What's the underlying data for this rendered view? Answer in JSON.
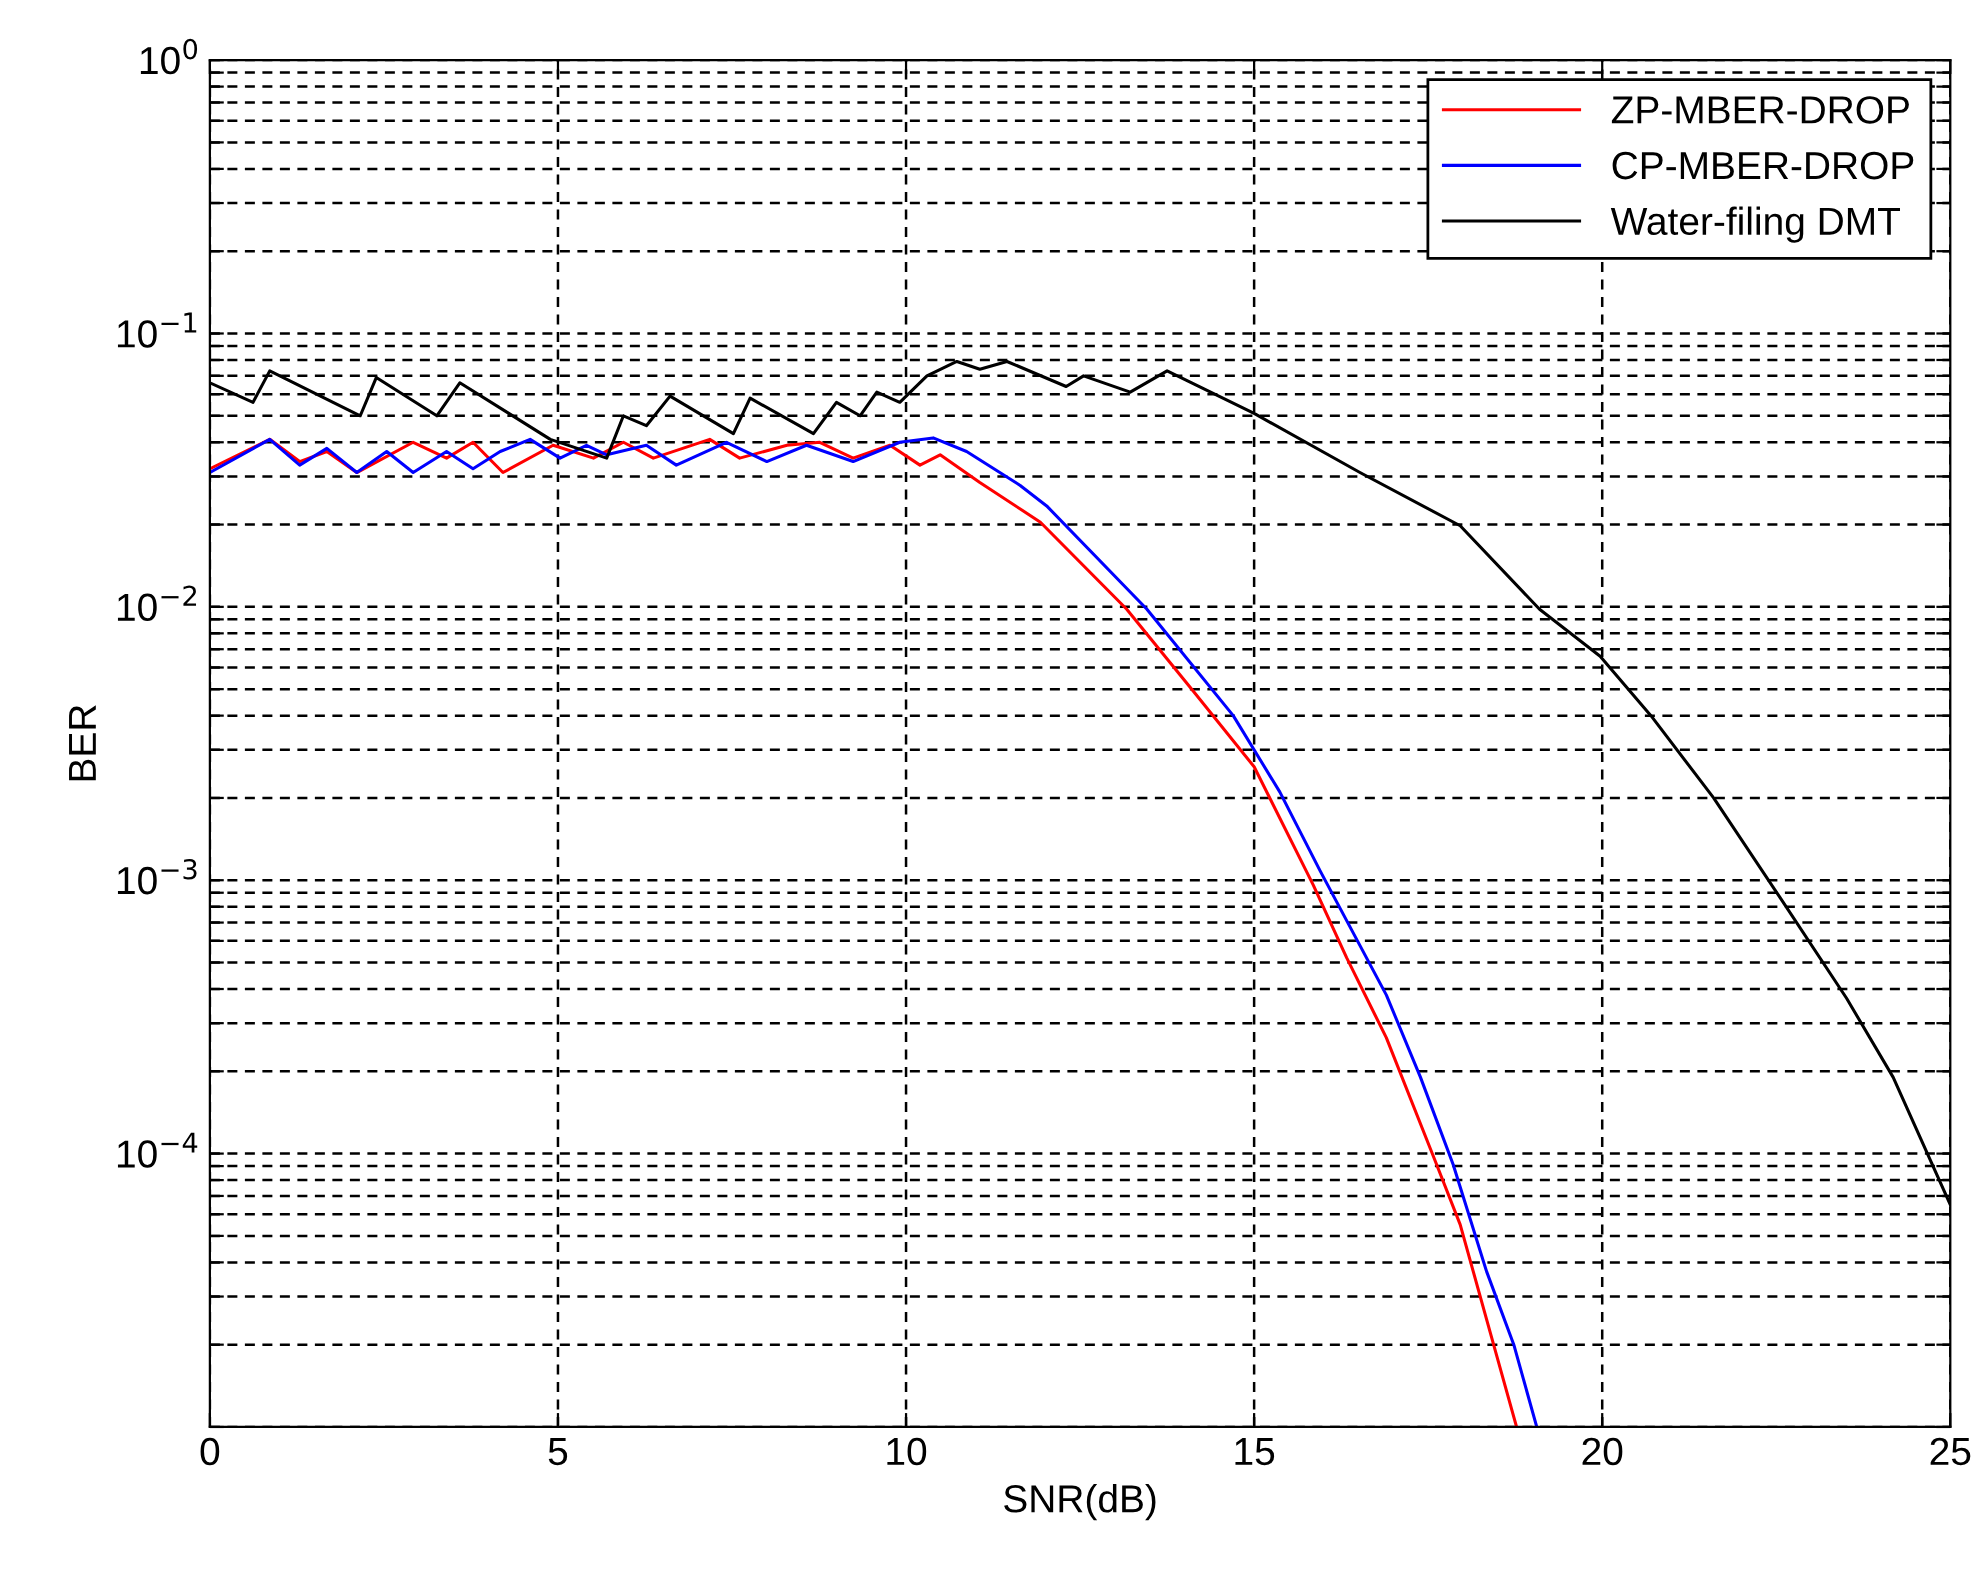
{
  "chart_data": {
    "type": "line",
    "xlabel": "SNR(dB)",
    "ylabel": "BER",
    "log": "y",
    "xlim": [
      0,
      25
    ],
    "xticks": [
      0,
      5,
      10,
      15,
      20,
      25
    ],
    "ylim": [
      1e-05,
      1
    ],
    "yticks": [
      {
        "value": 1e-05,
        "label": null
      },
      {
        "value": 2e-05,
        "label": null
      },
      {
        "value": 3e-05,
        "label": null
      },
      {
        "value": 4e-05,
        "label": null
      },
      {
        "value": 5e-05,
        "label": null
      },
      {
        "value": 6e-05,
        "label": null
      },
      {
        "value": 7e-05,
        "label": null
      },
      {
        "value": 8e-05,
        "label": null
      },
      {
        "value": 9e-05,
        "label": null
      },
      {
        "value": 0.0001,
        "label": "10$^{−4}$"
      },
      {
        "value": 0.0002,
        "label": null
      },
      {
        "value": 0.0003,
        "label": null
      },
      {
        "value": 0.0004,
        "label": null
      },
      {
        "value": 0.0005,
        "label": null
      },
      {
        "value": 0.0006,
        "label": null
      },
      {
        "value": 0.0007,
        "label": null
      },
      {
        "value": 0.0008,
        "label": null
      },
      {
        "value": 0.0009,
        "label": null
      },
      {
        "value": 0.001,
        "label": "10$^{−3}$"
      },
      {
        "value": 0.002,
        "label": null
      },
      {
        "value": 0.003,
        "label": null
      },
      {
        "value": 0.004,
        "label": null
      },
      {
        "value": 0.005,
        "label": null
      },
      {
        "value": 0.006,
        "label": null
      },
      {
        "value": 0.007,
        "label": null
      },
      {
        "value": 0.008,
        "label": null
      },
      {
        "value": 0.009,
        "label": null
      },
      {
        "value": 0.01,
        "label": "10$^{−2}$"
      },
      {
        "value": 0.02,
        "label": null
      },
      {
        "value": 0.03,
        "label": null
      },
      {
        "value": 0.04,
        "label": null
      },
      {
        "value": 0.05,
        "label": null
      },
      {
        "value": 0.06,
        "label": null
      },
      {
        "value": 0.07,
        "label": null
      },
      {
        "value": 0.08,
        "label": null
      },
      {
        "value": 0.09,
        "label": null
      },
      {
        "value": 0.1,
        "label": "10$^{−1}$"
      },
      {
        "value": 0.2,
        "label": null
      },
      {
        "value": 0.3,
        "label": null
      },
      {
        "value": 0.4,
        "label": null
      },
      {
        "value": 0.5,
        "label": null
      },
      {
        "value": 0.6,
        "label": null
      },
      {
        "value": 0.7,
        "label": null
      },
      {
        "value": 0.8,
        "label": null
      },
      {
        "value": 0.9,
        "label": null
      },
      {
        "value": 1,
        "label": "10$^{0}$"
      }
    ],
    "grid": true,
    "legend": "top right",
    "line_style": "solid",
    "marker": "none",
    "series": [
      {
        "name": "ZP-MBER-DROP",
        "color": "#ff0000",
        "x": [
          0,
          0.86,
          1.29,
          1.68,
          2.11,
          2.92,
          3.4,
          3.78,
          4.21,
          4.93,
          5.51,
          5.94,
          6.37,
          7.18,
          7.61,
          8.29,
          8.76,
          9.24,
          9.77,
          10.2,
          10.49,
          11.06,
          11.93,
          13.17,
          14.13,
          15.0,
          15.85,
          16.33,
          16.9,
          17.58,
          17.96,
          18.44,
          18.77
        ],
        "values": [
          0.032,
          0.041,
          0.034,
          0.037,
          0.031,
          0.04,
          0.035,
          0.04,
          0.031,
          0.039,
          0.035,
          0.04,
          0.035,
          0.041,
          0.035,
          0.039,
          0.04,
          0.035,
          0.039,
          0.033,
          0.036,
          0.0285,
          0.0204,
          0.0098,
          0.0049,
          0.0026,
          0.00096,
          0.00052,
          0.000265,
          9.7e-05,
          5.5e-05,
          2e-05,
          1e-05
        ]
      },
      {
        "name": "CP-MBER-DROP",
        "color": "#0000ff",
        "x": [
          0,
          0.86,
          1.29,
          1.68,
          2.11,
          2.54,
          2.92,
          3.4,
          3.78,
          4.17,
          4.6,
          5.03,
          5.41,
          5.7,
          6.27,
          6.7,
          7.42,
          8.0,
          8.57,
          9.24,
          9.91,
          10.39,
          10.87,
          11.64,
          12.02,
          13.46,
          14.7,
          15.37,
          15.95,
          16.9,
          17.39,
          17.86,
          18.34,
          18.73,
          19.06
        ],
        "values": [
          0.031,
          0.041,
          0.033,
          0.038,
          0.031,
          0.037,
          0.031,
          0.037,
          0.032,
          0.037,
          0.041,
          0.035,
          0.039,
          0.036,
          0.039,
          0.033,
          0.04,
          0.034,
          0.039,
          0.034,
          0.04,
          0.0415,
          0.037,
          0.0278,
          0.0234,
          0.0098,
          0.004,
          0.0021,
          0.00108,
          0.00038,
          0.00019,
          9.1e-05,
          3.7e-05,
          2e-05,
          1e-05
        ]
      },
      {
        "name": "Water-filing DMT",
        "color": "#000000",
        "x": [
          0,
          0.62,
          0.86,
          2.16,
          2.39,
          3.26,
          3.59,
          4.89,
          5.7,
          5.94,
          6.27,
          6.61,
          7.52,
          7.76,
          8.67,
          9.0,
          9.34,
          9.58,
          9.91,
          10.3,
          10.73,
          11.06,
          11.45,
          12.3,
          12.55,
          13.22,
          13.75,
          15.0,
          16.52,
          17.96,
          19.1,
          19.97,
          20.7,
          21.6,
          22.56,
          23.51,
          24.18,
          25
        ],
        "values": [
          0.066,
          0.056,
          0.073,
          0.05,
          0.069,
          0.05,
          0.066,
          0.041,
          0.035,
          0.05,
          0.046,
          0.059,
          0.043,
          0.058,
          0.043,
          0.056,
          0.05,
          0.061,
          0.056,
          0.07,
          0.079,
          0.074,
          0.079,
          0.064,
          0.07,
          0.061,
          0.073,
          0.051,
          0.031,
          0.0198,
          0.0098,
          0.0066,
          0.004,
          0.002,
          0.00086,
          0.00037,
          0.00019,
          6.5e-05
        ]
      }
    ]
  }
}
